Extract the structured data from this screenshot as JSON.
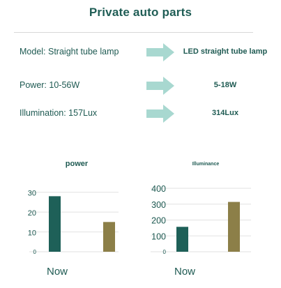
{
  "header": {
    "title": "Private auto parts"
  },
  "comparison": {
    "rows": [
      {
        "label": "Model: Straight tube lamp",
        "value": "LED straight tube lamp"
      },
      {
        "label": "Power: 10-56W",
        "value": "5-18W"
      },
      {
        "label": "Illumination: 157Lux",
        "value": "314Lux"
      }
    ],
    "arrow_color": "#a8d8d0"
  },
  "chart_data": [
    {
      "type": "bar",
      "title": "power",
      "categories": [
        "",
        ""
      ],
      "values": [
        28,
        15
      ],
      "colors": [
        "#1e6058",
        "#8c7f48"
      ],
      "yticks": [
        0,
        10,
        20,
        30
      ],
      "ylim": [
        0,
        32
      ],
      "grid": true,
      "xlabel": "Now"
    },
    {
      "type": "bar",
      "title": "Illuminance",
      "categories": [
        "",
        ""
      ],
      "values": [
        157,
        314
      ],
      "colors": [
        "#1e6058",
        "#8c7f48"
      ],
      "yticks": [
        0,
        100,
        200,
        300,
        400
      ],
      "ylim": [
        0,
        400
      ],
      "grid": true,
      "xlabel": "Now"
    }
  ]
}
